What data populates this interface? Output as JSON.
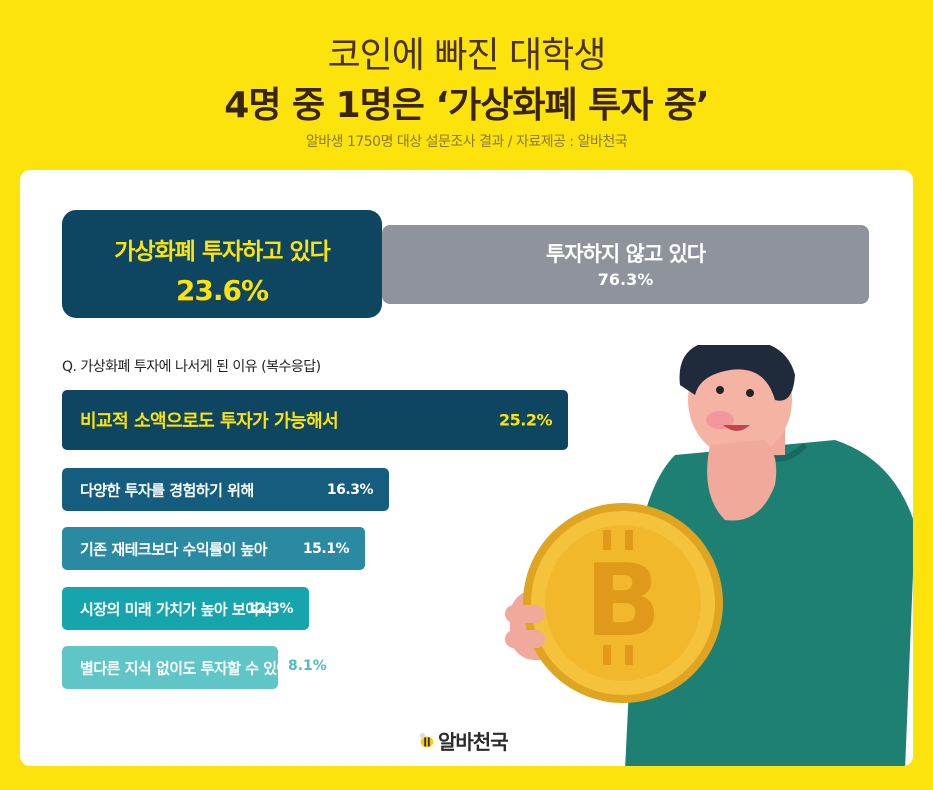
{
  "header": {
    "title_line1": "코인에 빠진 대학생",
    "title_line2": "4명 중 1명은 ‘가상화폐 투자 중’",
    "source": "알바생 1750명 대상 설문조사 결과 / 자료제공 : 알바천국"
  },
  "summary": {
    "invested_label": "가상화폐 투자하고 있다",
    "invested_value": "23.6%",
    "not_invested_label": "투자하지 않고 있다",
    "not_invested_value": "76.3%"
  },
  "question": "Q. 가상화폐 투자에 나서게 된 이유 (복수응답)",
  "chart_data": {
    "type": "bar",
    "orientation": "horizontal",
    "categories": [
      "비교적 소액으로도 투자가 가능해서",
      "다양한 투자를 경험하기 위해",
      "기존 재테크보다 수익률이 높아",
      "시장의 미래 가치가 높아 보여서",
      "별다른 지식 없이도 투자할 수 있어서"
    ],
    "values": [
      25.2,
      16.3,
      15.1,
      12.3,
      8.1
    ],
    "value_labels": [
      "25.2%",
      "16.3%",
      "15.1%",
      "12.3%",
      "8.1%"
    ],
    "colors": [
      "#0e4560",
      "#145d7e",
      "#2a8aa2",
      "#16a5ad",
      "#5fc5c7"
    ],
    "label_colors": [
      "#FDE30C",
      "#ffffff",
      "#ffffff",
      "#ffffff",
      "#ffffff"
    ]
  },
  "colors": {
    "background": "#FDE30C",
    "invested_box": "#0e4560",
    "not_invested_box": "#8e939c",
    "accent_text": "#FDE30C"
  },
  "logo": {
    "text": "알바천국",
    "icon": "bee-icon"
  }
}
